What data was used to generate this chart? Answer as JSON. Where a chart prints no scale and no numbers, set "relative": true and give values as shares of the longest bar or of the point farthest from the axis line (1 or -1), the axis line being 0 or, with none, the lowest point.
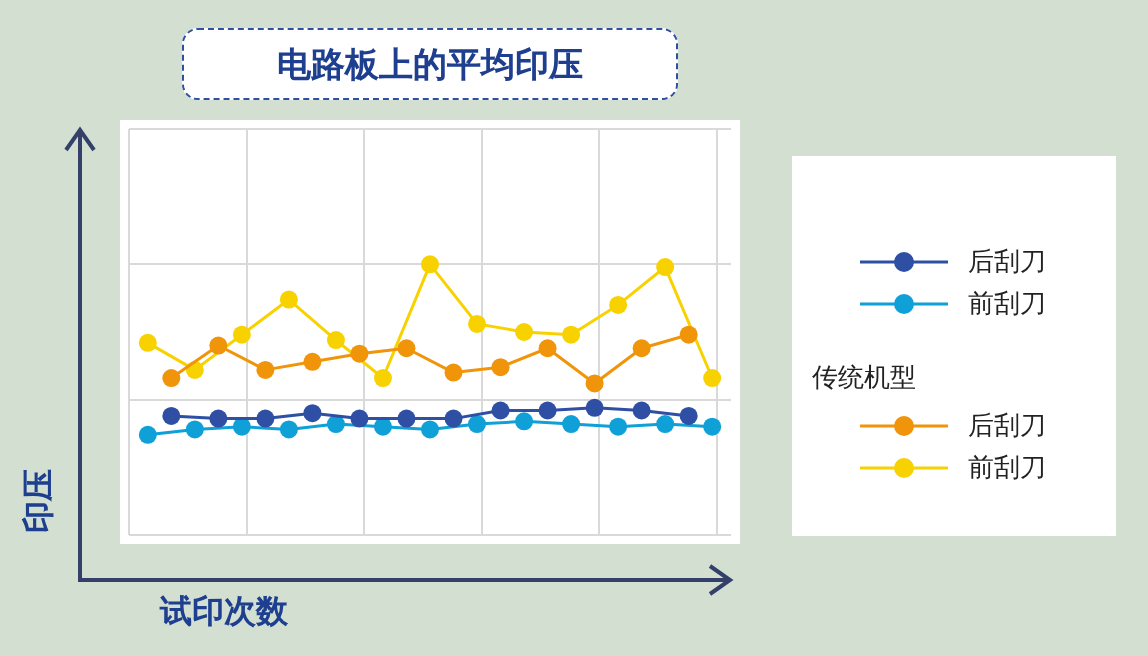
{
  "chart_data": {
    "type": "line",
    "title": "电路板上的平均印压",
    "xlabel": "试印次数",
    "ylabel": "印压",
    "relative": true,
    "grid": true,
    "legend": "right",
    "marker": "circle",
    "line_style": "solid",
    "annotations": [
      "传统机型"
    ],
    "categories": [
      null,
      null,
      null,
      null,
      null,
      null,
      null,
      null,
      null,
      null,
      null,
      null,
      null,
      null,
      null,
      null,
      null,
      null,
      null,
      null,
      null,
      null,
      null,
      null,
      null
    ],
    "series": [
      {
        "name": "后刮刀",
        "color": "#2e4fa3",
        "values": [
          null,
          0.44,
          null,
          0.43,
          null,
          0.43,
          null,
          0.45,
          null,
          0.43,
          null,
          0.43,
          null,
          0.43,
          null,
          0.46,
          null,
          0.46,
          null,
          0.47,
          null,
          0.46,
          null,
          0.44,
          null
        ]
      },
      {
        "name": "前刮刀",
        "color": "#0fa0d8",
        "values": [
          0.37,
          null,
          0.39,
          null,
          0.4,
          null,
          0.39,
          null,
          0.41,
          null,
          0.4,
          null,
          0.39,
          null,
          0.41,
          null,
          0.42,
          null,
          0.41,
          null,
          0.4,
          null,
          0.41,
          null,
          0.4
        ]
      },
      {
        "name": "后刮刀",
        "color": "#f0940a",
        "values": [
          null,
          0.58,
          null,
          0.7,
          null,
          0.61,
          null,
          0.64,
          null,
          0.67,
          null,
          0.69,
          null,
          0.6,
          null,
          0.62,
          null,
          0.69,
          null,
          0.56,
          null,
          0.69,
          null,
          0.74,
          null
        ]
      },
      {
        "name": "前刮刀",
        "color": "#f8d200",
        "values": [
          0.71,
          null,
          0.61,
          null,
          0.74,
          null,
          0.87,
          null,
          0.72,
          null,
          0.58,
          null,
          1.0,
          null,
          0.78,
          null,
          0.75,
          null,
          0.74,
          null,
          0.85,
          null,
          0.99,
          null,
          0.58
        ]
      }
    ]
  }
}
